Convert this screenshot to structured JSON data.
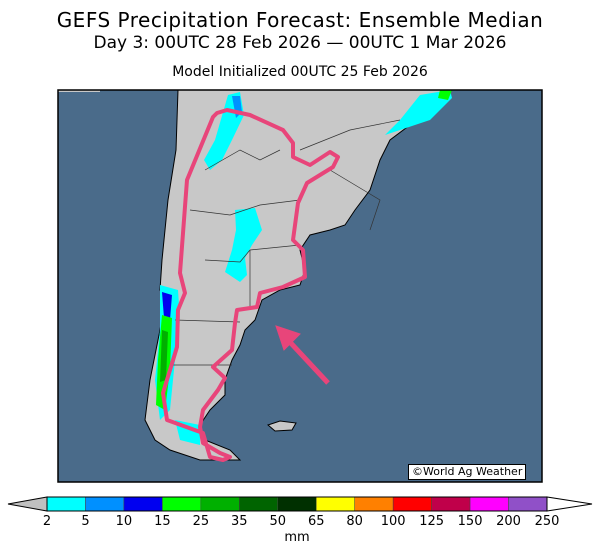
{
  "header": {
    "title": "GEFS Precipitation Forecast: Ensemble Median",
    "subtitle": "Day 3: 00UTC 28 Feb 2026 — 00UTC 1 Mar 2026",
    "initialized": "Model Initialized 00UTC 25 Feb 2026"
  },
  "credit": "©World Ag Weather",
  "chart_data": {
    "type": "heatmap",
    "title": "GEFS Precipitation Forecast: Ensemble Median",
    "region": "southern South America (Argentina)",
    "colorbar": {
      "unit": "mm",
      "ticks": [
        "2",
        "5",
        "10",
        "15",
        "25",
        "35",
        "50",
        "65",
        "80",
        "100",
        "125",
        "150",
        "200",
        "250"
      ],
      "colors": [
        "#00ffff",
        "#0090ff",
        "#0000f0",
        "#00ff00",
        "#00b000",
        "#006400",
        "#003000",
        "#ffff00",
        "#ff8000",
        "#ff0000",
        "#c0004a",
        "#ff00ff",
        "#9050c8"
      ],
      "under_color": "#c0c0c0",
      "over_color": "#ffffff"
    },
    "colors": {
      "land": "#c8c8c8",
      "ocean": "#4a6b8a",
      "annotation": "#e8457a"
    }
  }
}
